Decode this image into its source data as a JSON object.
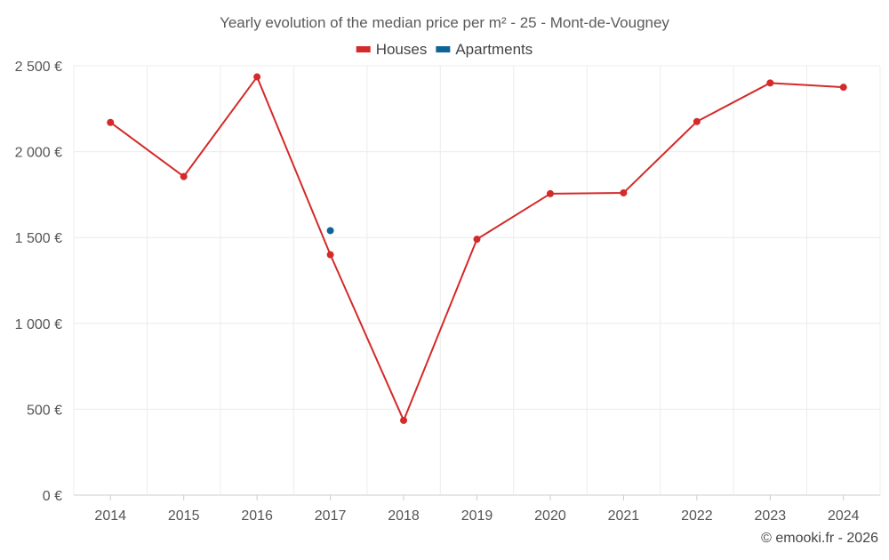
{
  "chart_data": {
    "type": "line",
    "title": "Yearly evolution of the median price per m² - 25 - Mont-de-Vougney",
    "categories": [
      "2014",
      "2015",
      "2016",
      "2017",
      "2018",
      "2019",
      "2020",
      "2021",
      "2022",
      "2023",
      "2024"
    ],
    "series": [
      {
        "name": "Houses",
        "color": "#d42a2a",
        "values": [
          2170,
          1855,
          2435,
          1400,
          435,
          1490,
          1755,
          1760,
          2175,
          2400,
          2375
        ]
      },
      {
        "name": "Apartments",
        "color": "#0f6496",
        "values": [
          null,
          null,
          null,
          1540,
          null,
          null,
          null,
          null,
          null,
          null,
          null
        ]
      }
    ],
    "ylim": [
      0,
      2500
    ],
    "yticks": [
      0,
      500,
      1000,
      1500,
      2000,
      2500
    ],
    "ytick_labels": [
      "0 €",
      "500 €",
      "1 000 €",
      "1 500 €",
      "2 000 €",
      "2 500 €"
    ],
    "xlabel": "",
    "ylabel": "",
    "legend_position": "top-center",
    "grid": true
  },
  "credit": "© emooki.fr - 2026"
}
